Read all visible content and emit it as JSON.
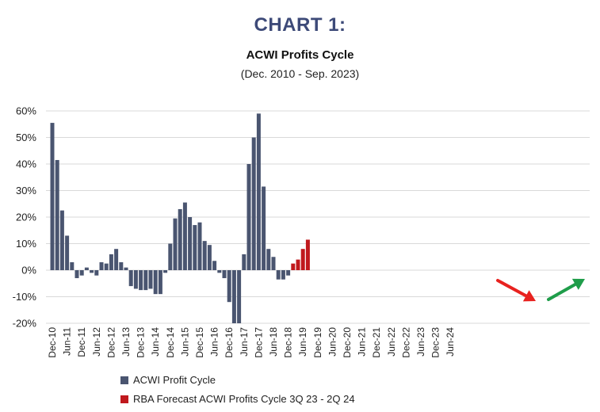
{
  "header": {
    "label": "CHART 1:",
    "title": "ACWI Profits Cycle",
    "subtitle": "(Dec. 2010 - Sep. 2023)"
  },
  "colors": {
    "actual": "#4a5570",
    "forecast": "#c0191d",
    "arrow_down": "#e8221f",
    "arrow_up": "#1f9d4a",
    "grid": "#d9d9d9"
  },
  "legend": [
    {
      "label": "ACWI Profit Cycle",
      "color": "#4a5570"
    },
    {
      "label": "RBA Forecast ACWI Profits Cycle 3Q 23 - 2Q 24",
      "color": "#c0191d"
    }
  ],
  "chart_data": {
    "type": "bar",
    "title": "ACWI Profits Cycle",
    "subtitle": "(Dec. 2010 - Sep. 2023)",
    "xlabel": "",
    "ylabel": "",
    "ylim": [
      -20,
      60
    ],
    "yticks": [
      -20,
      -10,
      0,
      10,
      20,
      30,
      40,
      50,
      60
    ],
    "ytick_labels": [
      "-20%",
      "-10%",
      "0%",
      "10%",
      "20%",
      "30%",
      "40%",
      "50%",
      "60%"
    ],
    "grid": "horizontal",
    "x_tick_labels": [
      "Dec-10",
      "Jun-11",
      "Dec-11",
      "Jun-12",
      "Dec-12",
      "Jun-13",
      "Dec-13",
      "Jun-14",
      "Dec-14",
      "Jun-15",
      "Dec-15",
      "Jun-16",
      "Dec-16",
      "Jun-17",
      "Dec-17",
      "Jun-18",
      "Dec-18",
      "Jun-19",
      "Dec-19",
      "Jun-20",
      "Dec-20",
      "Jun-21",
      "Dec-21",
      "Jun-22",
      "Dec-22",
      "Jun-23",
      "Dec-23",
      "Jun-24"
    ],
    "series": [
      {
        "name": "ACWI Profit Cycle",
        "color": "#4a5570",
        "values": [
          55.5,
          41.5,
          22.5,
          13,
          3,
          -3,
          -2,
          1,
          -1,
          -2,
          3,
          2.5,
          6,
          8,
          3,
          1,
          -6,
          -7,
          -7.5,
          -7.5,
          -7,
          -9,
          -9,
          -1,
          10,
          19.5,
          23,
          25.5,
          20,
          17,
          18,
          11,
          9.5,
          3.5,
          -1,
          -3,
          -12,
          -20,
          -20,
          6,
          40,
          50,
          59,
          31.5,
          8,
          5,
          -3.5,
          -3.5,
          -2
        ]
      },
      {
        "name": "RBA Forecast ACWI Profits Cycle 3Q 23 - 2Q 24",
        "color": "#c0191d",
        "values": [
          2.5,
          4,
          8,
          11.5
        ]
      }
    ],
    "annotations": [
      {
        "type": "arrow",
        "direction": "down",
        "color": "#e8221f"
      },
      {
        "type": "arrow",
        "direction": "up",
        "color": "#1f9d4a"
      }
    ]
  }
}
